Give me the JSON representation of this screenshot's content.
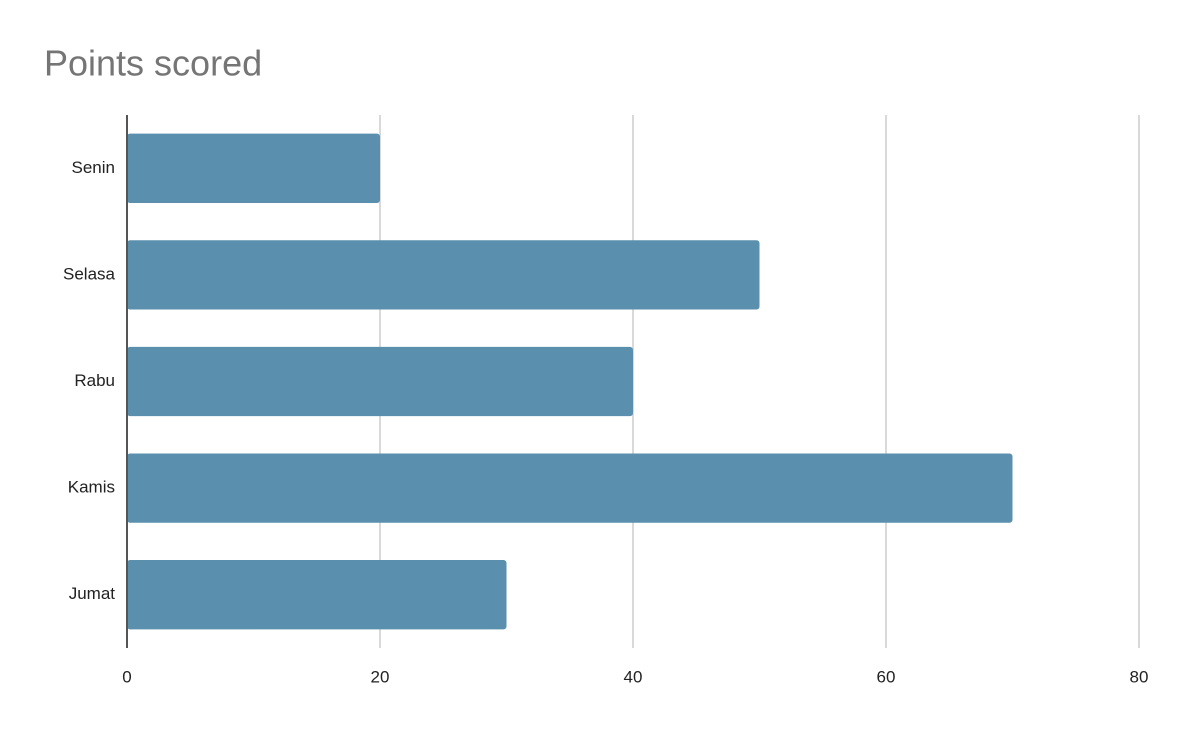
{
  "chart_data": {
    "type": "bar",
    "orientation": "horizontal",
    "title": "Points scored",
    "categories": [
      "Senin",
      "Selasa",
      "Rabu",
      "Kamis",
      "Jumat"
    ],
    "values": [
      20,
      50,
      40,
      70,
      30
    ],
    "color": "#5a8fae",
    "xlim": [
      0,
      80
    ],
    "xticks": [
      0,
      20,
      40,
      60,
      80
    ],
    "grid": true
  }
}
